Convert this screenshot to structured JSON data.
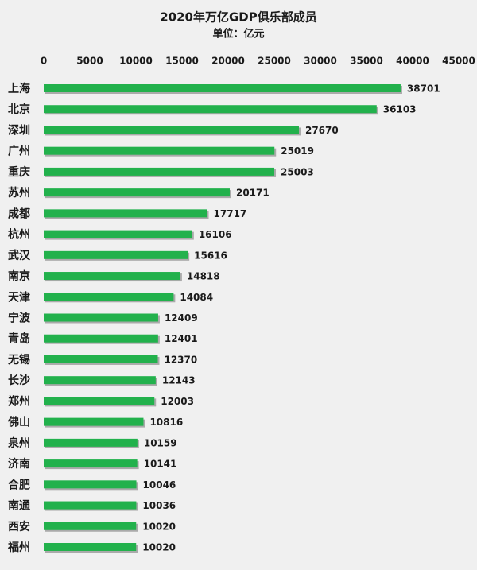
{
  "chart_data": {
    "type": "bar",
    "orientation": "horizontal",
    "title": "2020年万亿GDP俱乐部成员",
    "subtitle": "单位：亿元",
    "categories": [
      "上海",
      "北京",
      "深圳",
      "广州",
      "重庆",
      "苏州",
      "成都",
      "杭州",
      "武汉",
      "南京",
      "天津",
      "宁波",
      "青岛",
      "无锡",
      "长沙",
      "郑州",
      "佛山",
      "泉州",
      "济南",
      "合肥",
      "南通",
      "西安",
      "福州"
    ],
    "values": [
      38701,
      36103,
      27670,
      25019,
      25003,
      20171,
      17717,
      16106,
      15616,
      14818,
      14084,
      12409,
      12401,
      12370,
      12143,
      12003,
      10816,
      10159,
      10141,
      10046,
      10036,
      10020,
      10020
    ],
    "color": "#22b14c",
    "xlim": [
      0,
      45000
    ],
    "xticks": [
      0,
      5000,
      10000,
      15000,
      20000,
      25000,
      30000,
      35000,
      40000,
      45000
    ]
  }
}
